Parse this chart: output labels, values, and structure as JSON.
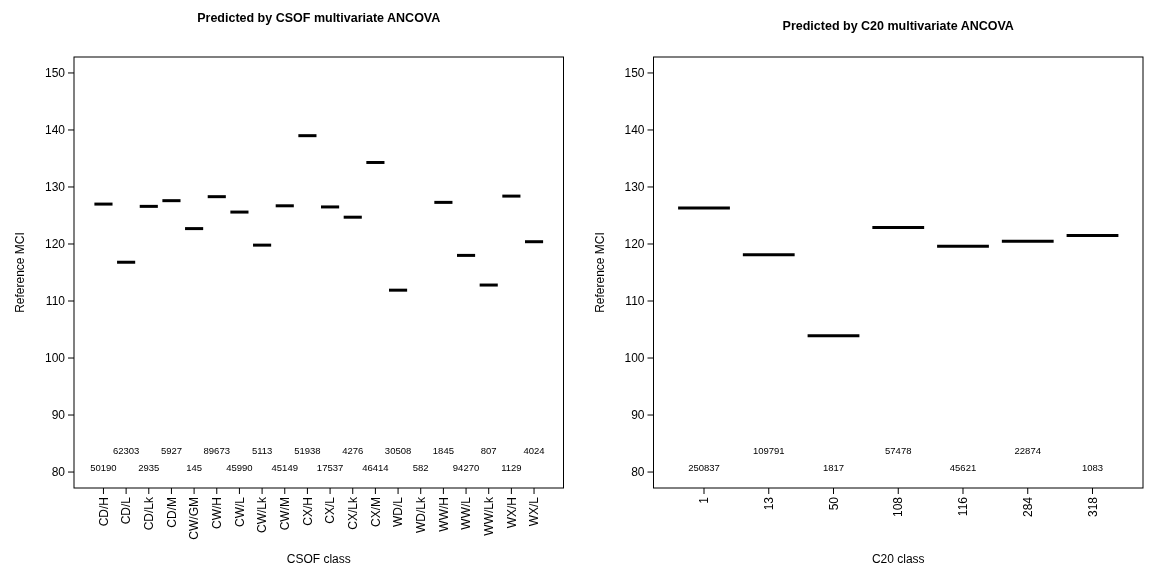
{
  "chart_data": [
    {
      "type": "box",
      "title": "Predicted by CSOF multivariate ANCOVA",
      "xlabel": "CSOF class",
      "ylabel": "Reference MCI",
      "categories": [
        "CD/H",
        "CD/L",
        "CD/Lk",
        "CD/M",
        "CW/GM",
        "CW/H",
        "CW/L",
        "CW/Lk",
        "CW/M",
        "CX/H",
        "CX/L",
        "CX/Lk",
        "CX/M",
        "WD/L",
        "WD/Lk",
        "WW/H",
        "WW/L",
        "WW/Lk",
        "WX/H",
        "WX/L"
      ],
      "ylim": [
        77.2,
        152.8
      ],
      "yticks": [
        80,
        90,
        100,
        110,
        120,
        130,
        140,
        150
      ],
      "boxes": [
        {
          "low": 127.0,
          "q1": 127.0,
          "median": 127.0,
          "q3": 127.0,
          "high": 127.0
        },
        {
          "low": 116.8,
          "q1": 116.8,
          "median": 116.8,
          "q3": 116.8,
          "high": 116.8
        },
        {
          "low": 126.6,
          "q1": 126.6,
          "median": 126.6,
          "q3": 126.6,
          "high": 126.6
        },
        {
          "low": 127.6,
          "q1": 127.6,
          "median": 127.6,
          "q3": 127.6,
          "high": 127.6
        },
        {
          "low": 122.7,
          "q1": 122.7,
          "median": 122.7,
          "q3": 122.7,
          "high": 122.7
        },
        {
          "low": 128.3,
          "q1": 128.3,
          "median": 128.3,
          "q3": 128.3,
          "high": 128.3
        },
        {
          "low": 125.6,
          "q1": 125.6,
          "median": 125.6,
          "q3": 125.6,
          "high": 125.6
        },
        {
          "low": 119.8,
          "q1": 119.8,
          "median": 119.8,
          "q3": 119.8,
          "high": 119.8
        },
        {
          "low": 126.7,
          "q1": 126.7,
          "median": 126.7,
          "q3": 126.7,
          "high": 126.7
        },
        {
          "low": 139.0,
          "q1": 139.0,
          "median": 139.0,
          "q3": 139.0,
          "high": 139.0
        },
        {
          "low": 126.5,
          "q1": 126.5,
          "median": 126.5,
          "q3": 126.5,
          "high": 126.5
        },
        {
          "low": 124.7,
          "q1": 124.7,
          "median": 124.7,
          "q3": 124.7,
          "high": 124.7
        },
        {
          "low": 134.3,
          "q1": 134.3,
          "median": 134.3,
          "q3": 134.3,
          "high": 134.3
        },
        {
          "low": 111.9,
          "q1": 111.9,
          "median": 111.9,
          "q3": 111.9,
          "high": 111.9
        },
        null,
        {
          "low": 127.3,
          "q1": 127.3,
          "median": 127.3,
          "q3": 127.3,
          "high": 127.3
        },
        {
          "low": 118.0,
          "q1": 118.0,
          "median": 118.0,
          "q3": 118.0,
          "high": 118.0
        },
        {
          "low": 112.8,
          "q1": 112.8,
          "median": 112.8,
          "q3": 112.8,
          "high": 112.8
        },
        {
          "low": 128.4,
          "q1": 128.4,
          "median": 128.4,
          "q3": 128.4,
          "high": 128.4
        },
        {
          "low": 120.4,
          "q1": 120.4,
          "median": 120.4,
          "q3": 120.4,
          "high": 120.4
        }
      ],
      "annotations": [
        "50190",
        "62303",
        "2935",
        "5927",
        "145",
        "89673",
        "45990",
        "5113",
        "45149",
        "51938",
        "17537",
        "4276",
        "46414",
        "30508",
        "582",
        "1845",
        "94270",
        "807",
        "1129",
        "4024"
      ]
    },
    {
      "type": "box",
      "title": "Predicted by C20 multivariate ANCOVA",
      "xlabel": "C20 class",
      "ylabel": "Reference MCI",
      "categories": [
        "1",
        "13",
        "50",
        "108",
        "116",
        "284",
        "318"
      ],
      "ylim": [
        77.2,
        152.8
      ],
      "yticks": [
        80,
        90,
        100,
        110,
        120,
        130,
        140,
        150
      ],
      "boxes": [
        {
          "low": 126.3,
          "q1": 126.3,
          "median": 126.3,
          "q3": 126.3,
          "high": 126.3
        },
        {
          "low": 118.1,
          "q1": 118.1,
          "median": 118.1,
          "q3": 118.1,
          "high": 118.1
        },
        {
          "low": 103.9,
          "q1": 103.9,
          "median": 103.9,
          "q3": 103.9,
          "high": 103.9
        },
        {
          "low": 122.9,
          "q1": 122.9,
          "median": 122.9,
          "q3": 122.9,
          "high": 122.9
        },
        {
          "low": 119.6,
          "q1": 119.6,
          "median": 119.6,
          "q3": 119.6,
          "high": 119.6
        },
        {
          "low": 120.5,
          "q1": 120.5,
          "median": 120.5,
          "q3": 120.5,
          "high": 120.5
        },
        {
          "low": 121.5,
          "q1": 121.5,
          "median": 121.5,
          "q3": 121.5,
          "high": 121.5
        }
      ],
      "annotations": [
        "250837",
        "109791",
        "1817",
        "57478",
        "45621",
        "22874",
        "1083"
      ]
    }
  ]
}
